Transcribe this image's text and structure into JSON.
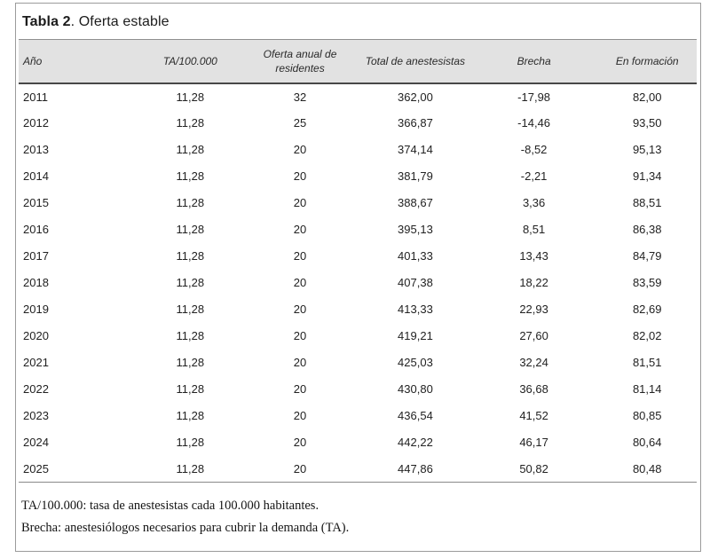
{
  "title": {
    "bold": "Tabla 2",
    "rest": ". Oferta estable"
  },
  "table": {
    "columns": [
      "Año",
      "TA/100.000",
      "Oferta anual de residentes",
      "Total de anestesistas",
      "Brecha",
      "En formación"
    ],
    "rows": [
      [
        "2011",
        "11,28",
        "32",
        "362,00",
        "-17,98",
        "82,00"
      ],
      [
        "2012",
        "11,28",
        "25",
        "366,87",
        "-14,46",
        "93,50"
      ],
      [
        "2013",
        "11,28",
        "20",
        "374,14",
        "-8,52",
        "95,13"
      ],
      [
        "2014",
        "11,28",
        "20",
        "381,79",
        "-2,21",
        "91,34"
      ],
      [
        "2015",
        "11,28",
        "20",
        "388,67",
        "3,36",
        "88,51"
      ],
      [
        "2016",
        "11,28",
        "20",
        "395,13",
        "8,51",
        "86,38"
      ],
      [
        "2017",
        "11,28",
        "20",
        "401,33",
        "13,43",
        "84,79"
      ],
      [
        "2018",
        "11,28",
        "20",
        "407,38",
        "18,22",
        "83,59"
      ],
      [
        "2019",
        "11,28",
        "20",
        "413,33",
        "22,93",
        "82,69"
      ],
      [
        "2020",
        "11,28",
        "20",
        "419,21",
        "27,60",
        "82,02"
      ],
      [
        "2021",
        "11,28",
        "20",
        "425,03",
        "32,24",
        "81,51"
      ],
      [
        "2022",
        "11,28",
        "20",
        "430,80",
        "36,68",
        "81,14"
      ],
      [
        "2023",
        "11,28",
        "20",
        "436,54",
        "41,52",
        "80,85"
      ],
      [
        "2024",
        "11,28",
        "20",
        "442,22",
        "46,17",
        "80,64"
      ],
      [
        "2025",
        "11,28",
        "20",
        "447,86",
        "50,82",
        "80,48"
      ]
    ]
  },
  "footnotes": [
    "TA/100.000: tasa de anestesistas cada 100.000 habitantes.",
    "Brecha: anestesiólogos necesarios para cubrir la demanda (TA)."
  ],
  "colors": {
    "header_band": "#e2e2e2",
    "rule_light": "#8f8f8f",
    "rule_dark": "#474747",
    "card_border": "#9b9b9b"
  }
}
